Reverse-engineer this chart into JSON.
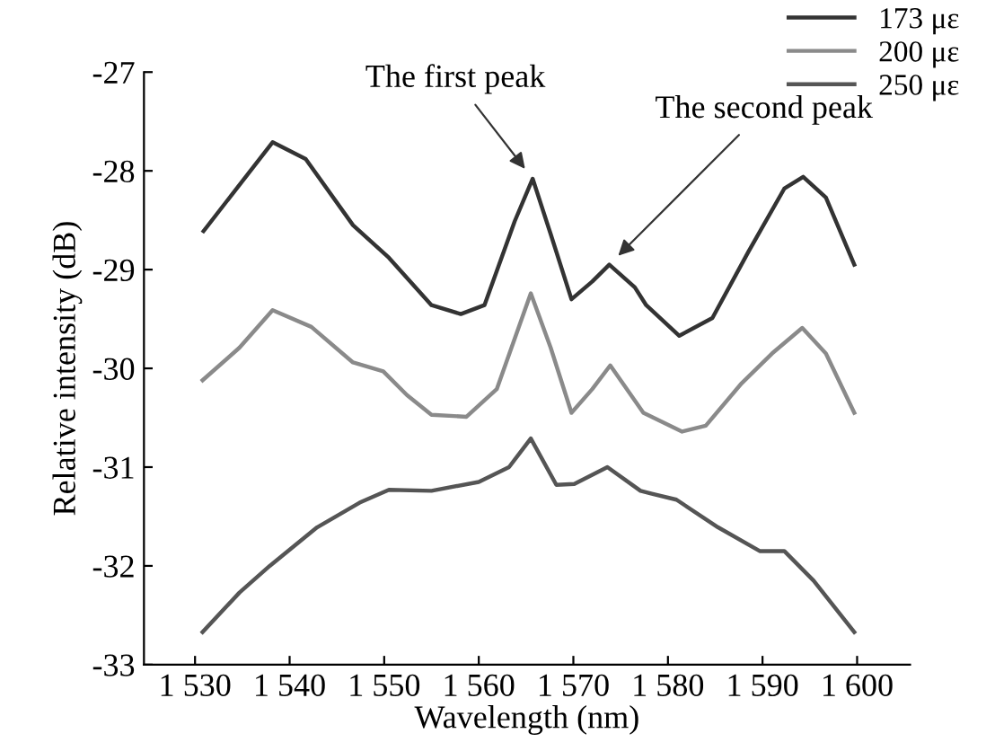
{
  "chart_data": {
    "type": "line",
    "xlabel": "Wavelength (nm)",
    "ylabel": "Relative intensity (dB)",
    "xlim": [
      1524.6,
      1605.6
    ],
    "ylim": [
      -33,
      -27
    ],
    "xticks": [
      {
        "value": 1530,
        "label": "1 530"
      },
      {
        "value": 1540,
        "label": "1 540"
      },
      {
        "value": 1550,
        "label": "1 550"
      },
      {
        "value": 1560,
        "label": "1 560"
      },
      {
        "value": 1570,
        "label": "1 570"
      },
      {
        "value": 1580,
        "label": "1 580"
      },
      {
        "value": 1590,
        "label": "1 590"
      },
      {
        "value": 1600,
        "label": "1 600"
      }
    ],
    "yticks": [
      -33,
      -32,
      -31,
      -30,
      -29,
      -28,
      -27
    ],
    "grid": false,
    "legend": "top right",
    "marker": "none",
    "line_style": "solid",
    "annotations": [
      {
        "text": "The first peak",
        "x": 1565.7,
        "y": -28.08
      },
      {
        "text": "The second peak",
        "x": 1573.8,
        "y": -28.95
      }
    ],
    "series": [
      {
        "name": "173 με",
        "color": "#333333",
        "x": [
          1530.9,
          1538.2,
          1541.7,
          1546.7,
          1550.5,
          1555.0,
          1558.1,
          1560.6,
          1563.8,
          1565.7,
          1567.6,
          1569.8,
          1572.0,
          1573.8,
          1576.5,
          1577.7,
          1581.2,
          1584.7,
          1588.5,
          1592.3,
          1594.3,
          1596.7,
          1599.7
        ],
        "values": [
          -28.61,
          -27.71,
          -27.88,
          -28.55,
          -28.88,
          -29.36,
          -29.45,
          -29.36,
          -28.51,
          -28.08,
          -28.64,
          -29.3,
          -29.12,
          -28.95,
          -29.18,
          -29.36,
          -29.67,
          -29.49,
          -28.82,
          -28.18,
          -28.06,
          -28.27,
          -28.95
        ]
      },
      {
        "name": "200 με",
        "color": "#8a8a8a",
        "x": [
          1530.8,
          1534.7,
          1538.2,
          1542.3,
          1546.7,
          1549.9,
          1552.4,
          1555.0,
          1558.7,
          1561.9,
          1565.5,
          1567.6,
          1569.8,
          1572.0,
          1573.9,
          1577.4,
          1581.5,
          1584.0,
          1587.8,
          1591.0,
          1594.2,
          1596.7,
          1599.7
        ],
        "values": [
          -30.12,
          -29.79,
          -29.41,
          -29.58,
          -29.94,
          -30.03,
          -30.27,
          -30.47,
          -30.49,
          -30.21,
          -29.24,
          -29.79,
          -30.45,
          -30.21,
          -29.97,
          -30.45,
          -30.64,
          -30.58,
          -30.15,
          -29.85,
          -29.59,
          -29.85,
          -30.45
        ]
      },
      {
        "name": "250 με",
        "color": "#555555",
        "x": [
          1530.8,
          1534.7,
          1537.9,
          1542.9,
          1547.4,
          1550.5,
          1555.0,
          1560.0,
          1563.2,
          1565.5,
          1568.2,
          1570.1,
          1573.6,
          1577.1,
          1578.3,
          1580.9,
          1585.3,
          1589.7,
          1592.3,
          1595.4,
          1599.7
        ],
        "values": [
          -32.67,
          -32.27,
          -32.0,
          -31.61,
          -31.36,
          -31.23,
          -31.24,
          -31.15,
          -31.0,
          -30.71,
          -31.18,
          -31.17,
          -31.0,
          -31.24,
          -31.27,
          -31.33,
          -31.61,
          -31.85,
          -31.85,
          -32.15,
          -32.67
        ]
      }
    ]
  }
}
